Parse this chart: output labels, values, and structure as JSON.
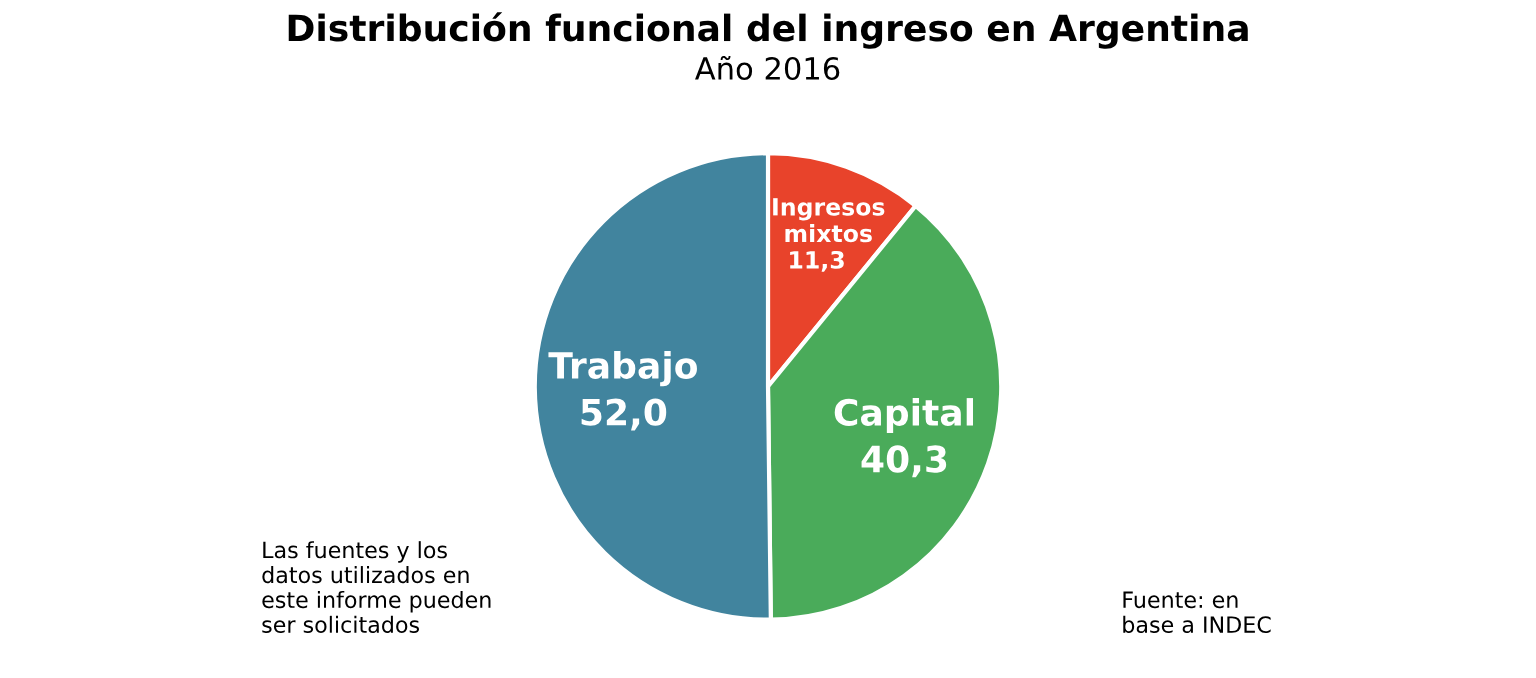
{
  "chart_data": {
    "type": "pie",
    "title": "Distribución funcional del ingreso en Argentina",
    "subtitle": "Año 2016",
    "categories": [
      "Ingresos\nmixtos",
      "Capital",
      "Trabajo"
    ],
    "values": [
      11.3,
      40.3,
      52.0
    ],
    "value_labels": [
      "11,3",
      "40,3",
      "52,0"
    ],
    "colors": [
      "#e8432b",
      "#4aab5a",
      "#41849e"
    ],
    "legend": false,
    "annotations": [
      "Las fuentes y los\ndatos utilizados en\neste informe pueden\nser solicitados",
      "Fuente: en\nbase a INDEC"
    ]
  }
}
